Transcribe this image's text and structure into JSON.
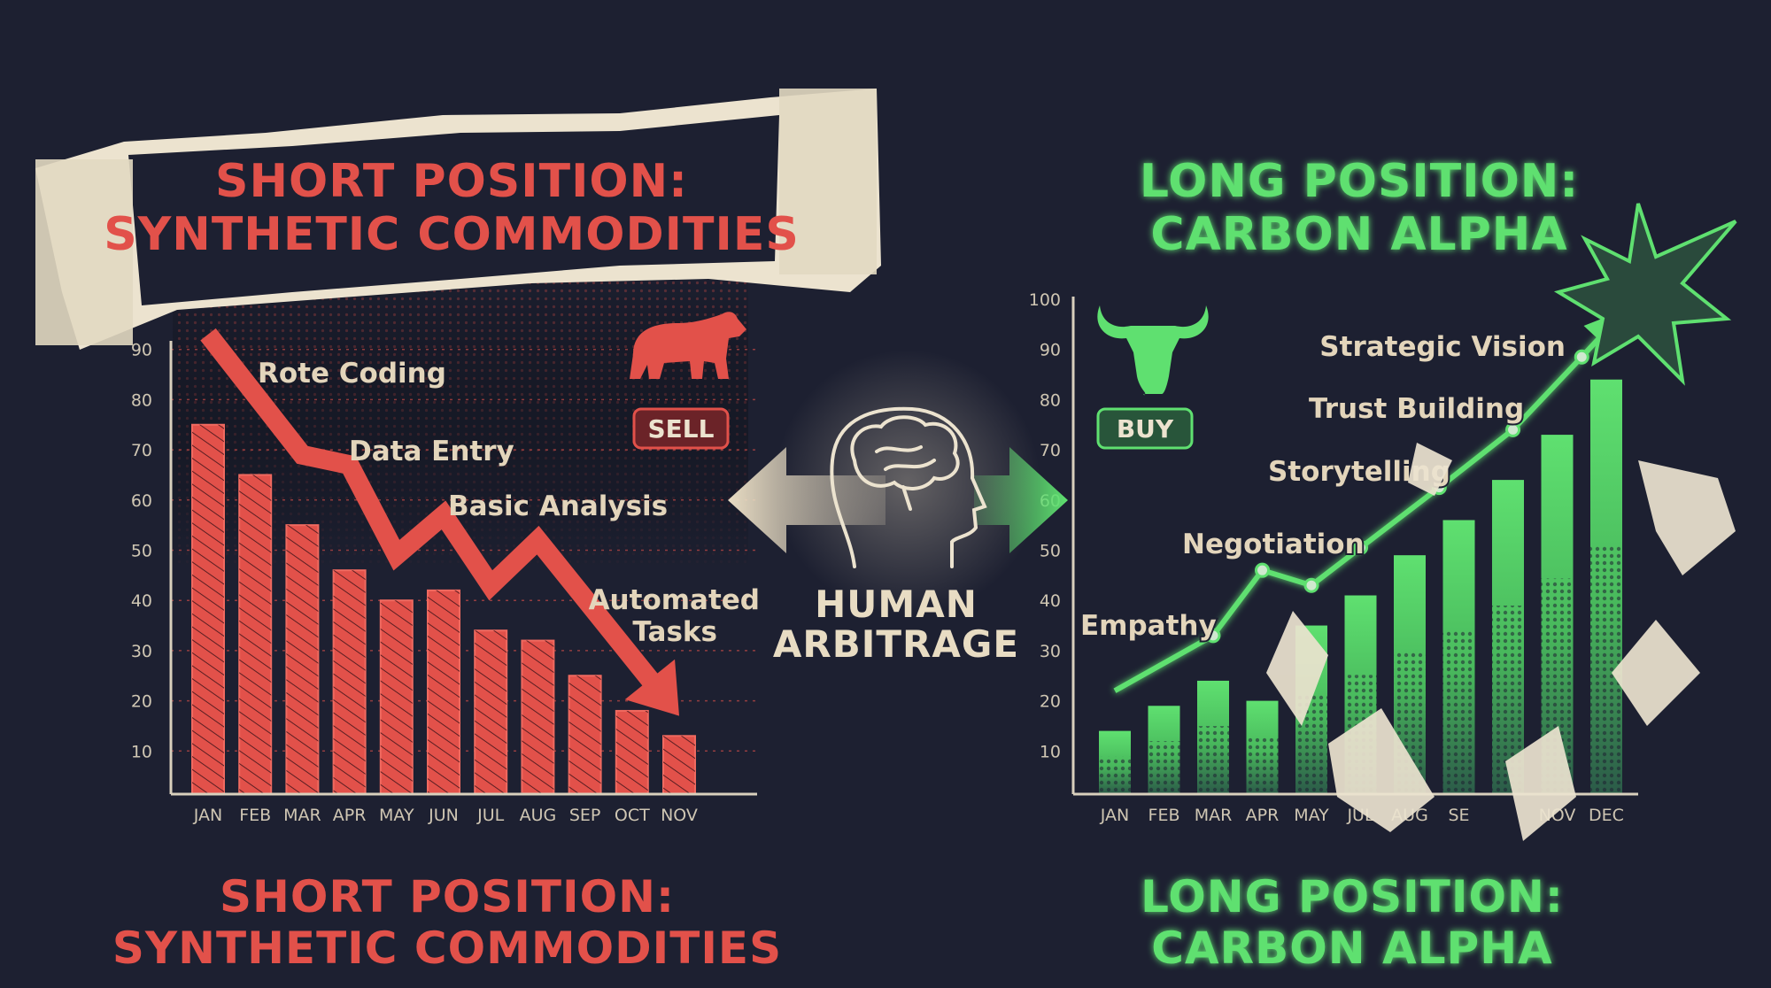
{
  "colors": {
    "background": "#1d2031",
    "bear_red": "#e2514a",
    "bull_green": "#5fe070",
    "paper": "#ece3cf",
    "axis": "#d9d0bd"
  },
  "top_left_title": {
    "line1": "SHORT POSITION:",
    "line2": "SYNTHETIC COMMODITIES"
  },
  "top_right_title": {
    "line1": "LONG POSITION:",
    "line2": "CARBON ALPHA"
  },
  "bottom_left_title": {
    "line1": "SHORT POSITION:",
    "line2": "SYNTHETIC COMMODITIES"
  },
  "bottom_right_title": {
    "line1": "LONG POSITION:",
    "line2": "CARBON ALPHA"
  },
  "center": {
    "line1": "HUMAN",
    "line2": "ARBITRAGE",
    "icon": "brain-head-icon"
  },
  "left_badge": {
    "label": "SELL",
    "icon": "bear-icon"
  },
  "right_badge": {
    "label": "BUY",
    "icon": "bull-icon"
  },
  "chart_data": [
    {
      "type": "bar",
      "categories": [
        "JAN",
        "FEB",
        "MAR",
        "APR",
        "MAY",
        "JUN",
        "JUL",
        "AUG",
        "SEP",
        "OCT",
        "NOV"
      ],
      "values": [
        75,
        65,
        55,
        46,
        40,
        42,
        34,
        32,
        25,
        18,
        13
      ],
      "yticks": [
        10,
        20,
        30,
        40,
        50,
        60,
        70,
        80,
        90
      ],
      "ylim": [
        0,
        100
      ],
      "grid": true,
      "trend_line": {
        "points": [
          [
            "JAN",
            93
          ],
          [
            "MAR",
            69
          ],
          [
            "APR",
            67
          ],
          [
            "MAY",
            49
          ],
          [
            "JUN",
            57
          ],
          [
            "JUL",
            43
          ],
          [
            "AUG",
            52
          ],
          [
            "NOV",
            17
          ]
        ],
        "direction": "down"
      },
      "annotations": [
        {
          "text": "Rote Coding",
          "at": "MAR"
        },
        {
          "text": "Data Entry",
          "at": "MAY"
        },
        {
          "text": "Basic Analysis",
          "at": "JUL"
        },
        {
          "text": "Automated",
          "at": "OCT"
        },
        {
          "text": "Tasks",
          "at": "OCT"
        }
      ]
    },
    {
      "type": "bar",
      "categories": [
        "JAN",
        "FEB",
        "MAR",
        "APR",
        "MAY",
        "JUL",
        "AUG",
        "SE",
        "",
        "NOV",
        "DEC"
      ],
      "values": [
        14,
        19,
        24,
        20,
        35,
        41,
        49,
        56,
        64,
        73,
        84
      ],
      "yticks": [
        10,
        20,
        30,
        40,
        50,
        60,
        70,
        80,
        90,
        100
      ],
      "ylim": [
        0,
        100
      ],
      "grid": false,
      "trend_line": {
        "points": [
          [
            0,
            22
          ],
          [
            2,
            33
          ],
          [
            3,
            46
          ],
          [
            4,
            43
          ],
          [
            5,
            50.5
          ],
          [
            6.6,
            62.5
          ],
          [
            8.1,
            74
          ],
          [
            9.5,
            88.5
          ],
          [
            10.4,
            98
          ]
        ],
        "direction": "up"
      },
      "annotations": [
        {
          "text": "Empathy",
          "at": 2
        },
        {
          "text": "Negotiation",
          "at": 3
        },
        {
          "text": "Storytelling",
          "at": 6.6
        },
        {
          "text": "Trust Building",
          "at": 8.1
        },
        {
          "text": "Strategic Vision",
          "at": 9.5
        }
      ]
    }
  ]
}
